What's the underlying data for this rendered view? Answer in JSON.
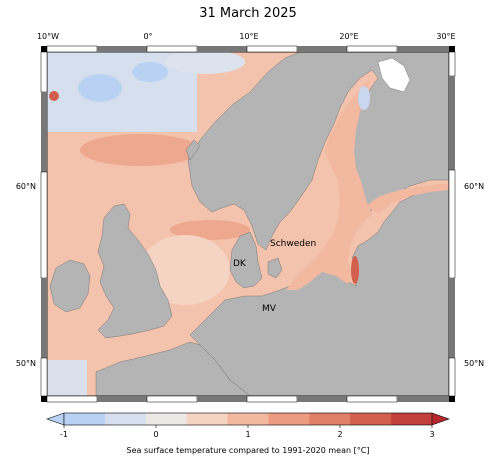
{
  "title": "31 March 2025",
  "lon_ticks": [
    "10°W",
    "0°",
    "10°E",
    "20°E",
    "30°E"
  ],
  "lat_ticks_left": [
    "60°N",
    "50°N"
  ],
  "lat_ticks_right": [
    "60°N",
    "50°N"
  ],
  "places": {
    "dk": "DK",
    "schweden": "Schweden",
    "mv": "MV"
  },
  "colorbar": {
    "ticks": [
      "-1",
      "0",
      "1",
      "2",
      "3"
    ],
    "label": "Sea surface temperature compared to 1991-2020 mean [°C]",
    "colors": [
      "#b9d2f3",
      "#d6dfee",
      "#ece8e4",
      "#f6d4c4",
      "#f3b8a0",
      "#ec9b82",
      "#e17e68",
      "#d3604f",
      "#c2403c"
    ]
  },
  "colors": {
    "land": "#b4b4b4",
    "sea_warm": "#f3b8a0",
    "sea_light": "#f6d4c4",
    "sea_cool": "#d6dfee",
    "sea_cold": "#b9d2f3",
    "sea_hot": "#e17e68"
  }
}
